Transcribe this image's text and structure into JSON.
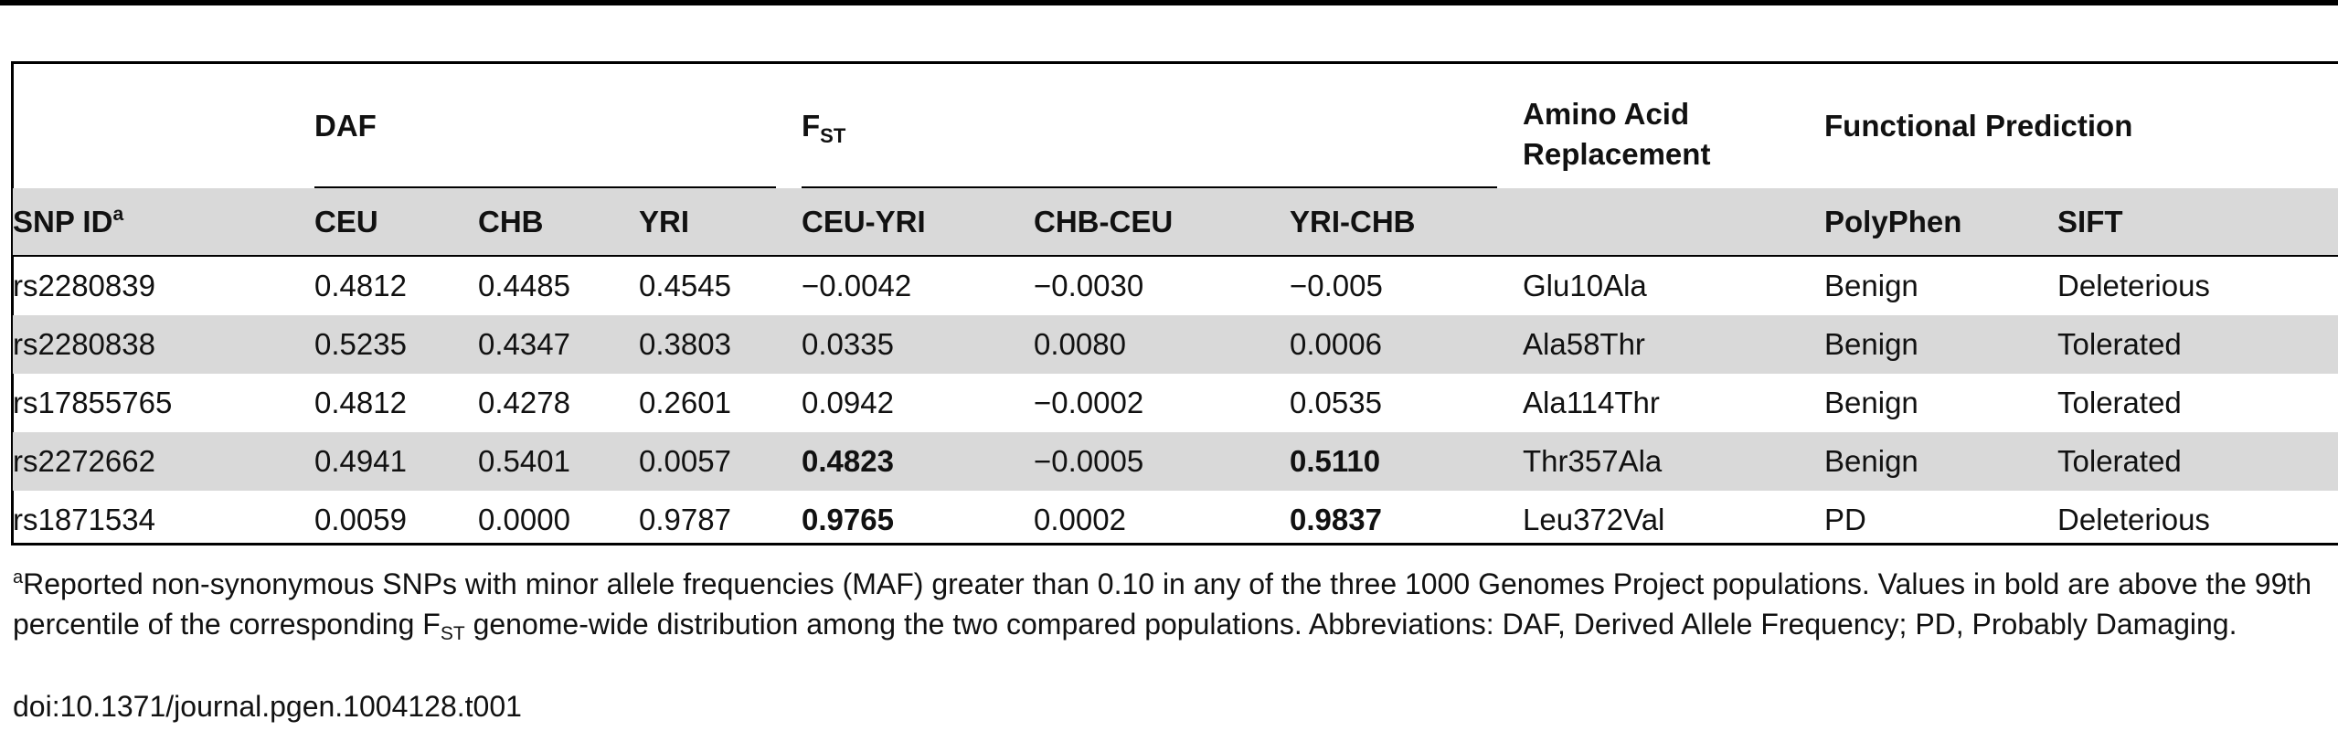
{
  "table": {
    "group_headers": {
      "daf": "DAF",
      "fst_base": "F",
      "fst_sub": "ST",
      "amino_acid_line1": "Amino Acid",
      "amino_acid_line2": "Replacement",
      "functional_prediction": "Functional Prediction"
    },
    "sub_headers": {
      "snp_id": "SNP ID",
      "snp_id_sup": "a",
      "ceu": "CEU",
      "chb": "CHB",
      "yri": "YRI",
      "ceu_yri": "CEU-YRI",
      "chb_ceu": "CHB-CEU",
      "yri_chb": "YRI-CHB",
      "amino_acid": "",
      "polyphen": "PolyPhen",
      "sift": "SIFT"
    },
    "rows": [
      {
        "snp": "rs2280839",
        "ceu": "0.4812",
        "chb": "0.4485",
        "yri": "0.4545",
        "ceu_yri": "−0.0042",
        "chb_ceu": "−0.0030",
        "yri_chb": "−0.005",
        "aa": "Glu10Ala",
        "polyphen": "Benign",
        "sift": "Deleterious"
      },
      {
        "snp": "rs2280838",
        "ceu": "0.5235",
        "chb": "0.4347",
        "yri": "0.3803",
        "ceu_yri": "0.0335",
        "chb_ceu": "0.0080",
        "yri_chb": "0.0006",
        "aa": "Ala58Thr",
        "polyphen": "Benign",
        "sift": "Tolerated"
      },
      {
        "snp": "rs17855765",
        "ceu": "0.4812",
        "chb": "0.4278",
        "yri": "0.2601",
        "ceu_yri": "0.0942",
        "chb_ceu": "−0.0002",
        "yri_chb": "0.0535",
        "aa": "Ala114Thr",
        "polyphen": "Benign",
        "sift": "Tolerated"
      },
      {
        "snp": "rs2272662",
        "ceu": "0.4941",
        "chb": "0.5401",
        "yri": "0.0057",
        "ceu_yri": "0.4823",
        "chb_ceu": "−0.0005",
        "yri_chb": "0.5110",
        "aa": "Thr357Ala",
        "polyphen": "Benign",
        "sift": "Tolerated"
      },
      {
        "snp": "rs1871534",
        "ceu": "0.0059",
        "chb": "0.0000",
        "yri": "0.9787",
        "ceu_yri": "0.9765",
        "chb_ceu": "0.0002",
        "yri_chb": "0.9837",
        "aa": "Leu372Val",
        "polyphen": "PD",
        "sift": "Deleterious"
      }
    ]
  },
  "footnote": {
    "marker": "a",
    "text_part1": "Reported non-synonymous SNPs with minor allele frequencies (MAF) greater than 0.10 in any of the three 1000 Genomes Project populations. Values in bold are above the 99th percentile of the corresponding F",
    "fst_sub": "ST",
    "text_part2": " genome-wide distribution among the two compared populations. Abbreviations: DAF, Derived Allele Frequency; PD, Probably Damaging."
  },
  "doi": "doi:10.1371/journal.pgen.1004128.t001"
}
